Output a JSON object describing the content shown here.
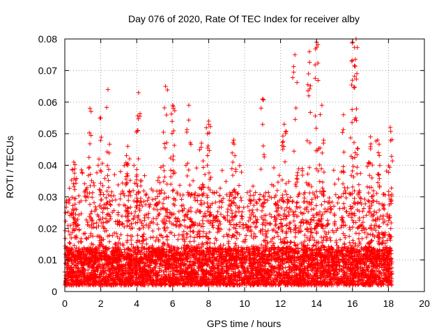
{
  "chart_data": {
    "type": "scatter",
    "title": "Day 076 of 2020, Rate Of TEC Index for receiver alby",
    "xlabel": "GPS time / hours",
    "ylabel": "ROTI / TECUs",
    "xlim": [
      0,
      20
    ],
    "ylim": [
      0,
      0.08
    ],
    "x_ticks": [
      0,
      2,
      4,
      6,
      8,
      10,
      12,
      14,
      16,
      18,
      20
    ],
    "x_tick_labels": [
      "0",
      "2",
      "4",
      "6",
      "8",
      "10",
      "12",
      "14",
      "16",
      "18",
      "20"
    ],
    "y_ticks": [
      0,
      0.01,
      0.02,
      0.03,
      0.04,
      0.05,
      0.06,
      0.07,
      0.08
    ],
    "y_tick_labels": [
      "0",
      "0.01",
      "0.02",
      "0.03",
      "0.04",
      "0.05",
      "0.06",
      "0.07",
      "0.08"
    ],
    "grid": true,
    "marker": "+",
    "color": "#ff0000",
    "peaks": [
      {
        "x": 0.5,
        "y": 0.041
      },
      {
        "x": 1.4,
        "y": 0.058
      },
      {
        "x": 2.0,
        "y": 0.055
      },
      {
        "x": 2.4,
        "y": 0.064
      },
      {
        "x": 3.5,
        "y": 0.046
      },
      {
        "x": 4.1,
        "y": 0.063
      },
      {
        "x": 5.6,
        "y": 0.065
      },
      {
        "x": 6.0,
        "y": 0.059
      },
      {
        "x": 6.9,
        "y": 0.059
      },
      {
        "x": 7.6,
        "y": 0.047
      },
      {
        "x": 8.0,
        "y": 0.054
      },
      {
        "x": 9.4,
        "y": 0.048
      },
      {
        "x": 11.0,
        "y": 0.061
      },
      {
        "x": 12.2,
        "y": 0.053
      },
      {
        "x": 12.8,
        "y": 0.075
      },
      {
        "x": 13.6,
        "y": 0.076
      },
      {
        "x": 14.0,
        "y": 0.079
      },
      {
        "x": 14.3,
        "y": 0.059
      },
      {
        "x": 15.5,
        "y": 0.056
      },
      {
        "x": 16.0,
        "y": 0.079
      },
      {
        "x": 16.2,
        "y": 0.08
      },
      {
        "x": 17.0,
        "y": 0.049
      },
      {
        "x": 17.4,
        "y": 0.048
      },
      {
        "x": 18.1,
        "y": 0.052
      }
    ],
    "series": [
      {
        "x_range": [
          0,
          18.2
        ],
        "y_base_range": [
          0.002,
          0.014
        ],
        "y_spike_max": 0.04
      }
    ]
  }
}
